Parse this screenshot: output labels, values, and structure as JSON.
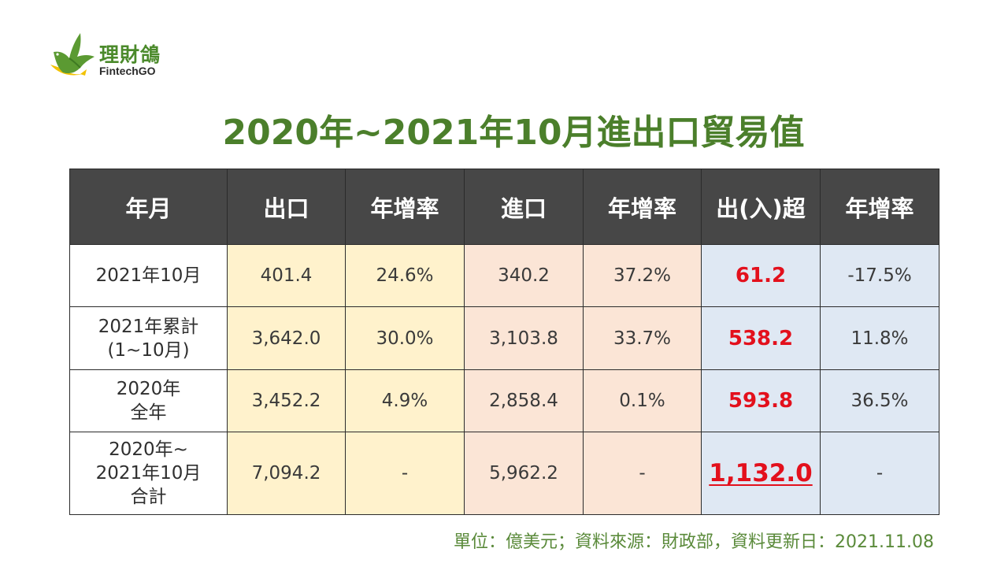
{
  "logo": {
    "name": "理財鴿",
    "sub": "FintechGO",
    "icon": "dove-logo-icon"
  },
  "title": "2020年~2021年10月進出口貿易值",
  "table": {
    "headers": [
      "年月",
      "出口",
      "年增率",
      "進口",
      "年增率",
      "出(入)超",
      "年增率"
    ],
    "rows": [
      {
        "label": [
          "2021年10月"
        ],
        "export": "401.4",
        "export_growth": "24.6%",
        "import": "340.2",
        "import_growth": "37.2%",
        "balance": "61.2",
        "balance_growth": "-17.5%"
      },
      {
        "label": [
          "2021年累計",
          "(1~10月)"
        ],
        "export": "3,642.0",
        "export_growth": "30.0%",
        "import": "3,103.8",
        "import_growth": "33.7%",
        "balance": "538.2",
        "balance_growth": "11.8%"
      },
      {
        "label": [
          "2020年",
          "全年"
        ],
        "export": "3,452.2",
        "export_growth": "4.9%",
        "import": "2,858.4",
        "import_growth": "0.1%",
        "balance": "593.8",
        "balance_growth": "36.5%"
      },
      {
        "label": [
          "2020年~",
          "2021年10月",
          "合計"
        ],
        "export": "7,094.2",
        "export_growth": "-",
        "import": "5,962.2",
        "import_growth": "-",
        "balance": "1,132.0",
        "balance_growth": "-"
      }
    ]
  },
  "footer": "單位：億美元；資料來源：財政部，資料更新日：2021.11.08",
  "colors": {
    "title": "#4b7f2b",
    "header_bg": "#474747",
    "export_bg": "#fff2cc",
    "import_bg": "#fbe5d6",
    "balance_bg": "#dfe8f3",
    "surplus": "#e3101c"
  }
}
